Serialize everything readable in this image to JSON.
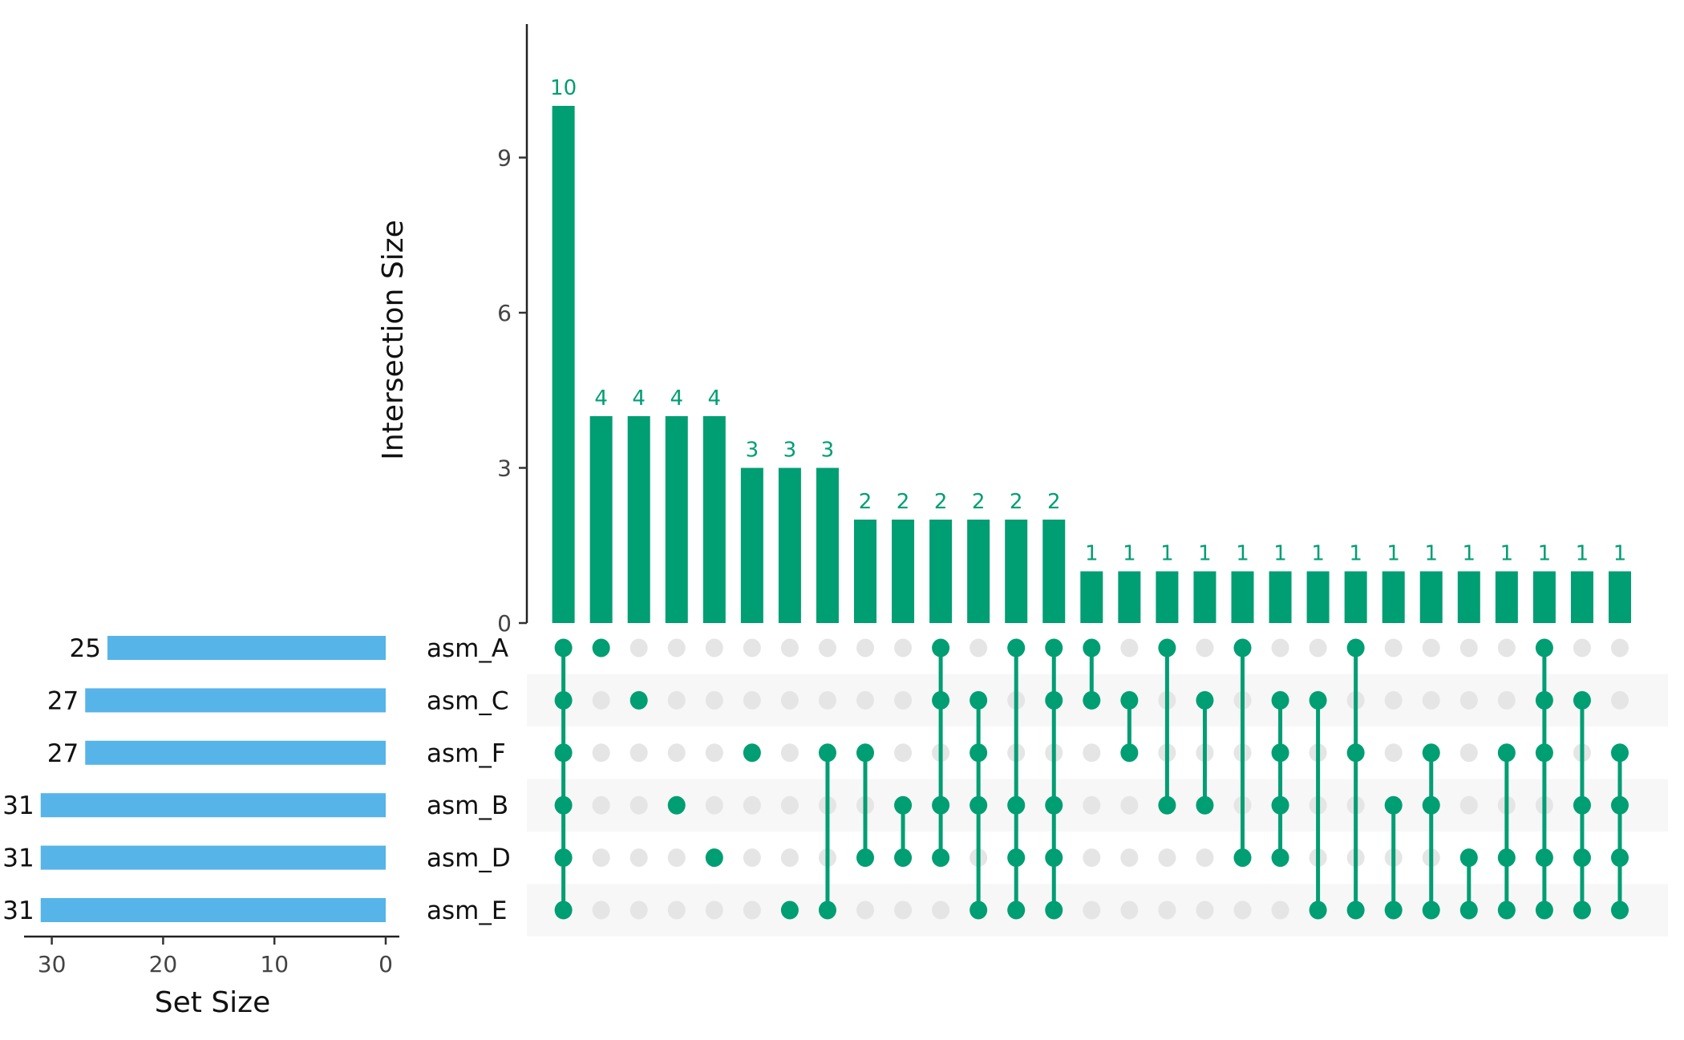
{
  "chart_data": {
    "type": "upset",
    "title": "",
    "colors": {
      "intersection": "#009E73",
      "set_size": "#56B4E9",
      "inactive_dot": "#E5E5E5",
      "band": "#F7F7F7"
    },
    "intersection_axis": {
      "ylabel": "Intersection Size",
      "ylim": [
        0,
        11.5
      ],
      "ticks": [
        0,
        3,
        6,
        9
      ]
    },
    "set_size_axis": {
      "xlabel": "Set Size",
      "xlim": [
        31.5,
        0
      ],
      "ticks": [
        30,
        20,
        10,
        0
      ]
    },
    "sets": [
      {
        "name": "asm_A",
        "size": 25,
        "size_label": "25"
      },
      {
        "name": "asm_C",
        "size": 27,
        "size_label": "27"
      },
      {
        "name": "asm_F",
        "size": 27,
        "size_label": "27"
      },
      {
        "name": "asm_B",
        "size": 31,
        "size_label": "31"
      },
      {
        "name": "asm_D",
        "size": 31,
        "size_label": "31"
      },
      {
        "name": "asm_E",
        "size": 31,
        "size_label": "31"
      }
    ],
    "intersections": [
      {
        "sets": [
          "asm_A",
          "asm_C",
          "asm_F",
          "asm_B",
          "asm_D",
          "asm_E"
        ],
        "size": 10
      },
      {
        "sets": [
          "asm_A"
        ],
        "size": 4
      },
      {
        "sets": [
          "asm_C"
        ],
        "size": 4
      },
      {
        "sets": [
          "asm_B"
        ],
        "size": 4
      },
      {
        "sets": [
          "asm_D"
        ],
        "size": 4
      },
      {
        "sets": [
          "asm_F"
        ],
        "size": 3
      },
      {
        "sets": [
          "asm_E"
        ],
        "size": 3
      },
      {
        "sets": [
          "asm_F",
          "asm_E"
        ],
        "size": 3
      },
      {
        "sets": [
          "asm_F",
          "asm_D"
        ],
        "size": 2
      },
      {
        "sets": [
          "asm_B",
          "asm_D"
        ],
        "size": 2
      },
      {
        "sets": [
          "asm_A",
          "asm_C",
          "asm_B",
          "asm_D"
        ],
        "size": 2
      },
      {
        "sets": [
          "asm_C",
          "asm_F",
          "asm_B",
          "asm_E"
        ],
        "size": 2
      },
      {
        "sets": [
          "asm_A",
          "asm_B",
          "asm_D",
          "asm_E"
        ],
        "size": 2
      },
      {
        "sets": [
          "asm_A",
          "asm_C",
          "asm_B",
          "asm_D",
          "asm_E"
        ],
        "size": 2
      },
      {
        "sets": [
          "asm_A",
          "asm_C"
        ],
        "size": 1
      },
      {
        "sets": [
          "asm_C",
          "asm_F"
        ],
        "size": 1
      },
      {
        "sets": [
          "asm_A",
          "asm_B"
        ],
        "size": 1
      },
      {
        "sets": [
          "asm_C",
          "asm_B"
        ],
        "size": 1
      },
      {
        "sets": [
          "asm_A",
          "asm_D"
        ],
        "size": 1
      },
      {
        "sets": [
          "asm_C",
          "asm_F",
          "asm_B",
          "asm_D"
        ],
        "size": 1
      },
      {
        "sets": [
          "asm_C",
          "asm_E"
        ],
        "size": 1
      },
      {
        "sets": [
          "asm_A",
          "asm_F",
          "asm_E"
        ],
        "size": 1
      },
      {
        "sets": [
          "asm_B",
          "asm_E"
        ],
        "size": 1
      },
      {
        "sets": [
          "asm_F",
          "asm_B",
          "asm_E"
        ],
        "size": 1
      },
      {
        "sets": [
          "asm_D",
          "asm_E"
        ],
        "size": 1
      },
      {
        "sets": [
          "asm_F",
          "asm_D",
          "asm_E"
        ],
        "size": 1
      },
      {
        "sets": [
          "asm_A",
          "asm_C",
          "asm_F",
          "asm_D",
          "asm_E"
        ],
        "size": 1
      },
      {
        "sets": [
          "asm_C",
          "asm_B",
          "asm_D",
          "asm_E"
        ],
        "size": 1
      },
      {
        "sets": [
          "asm_F",
          "asm_B",
          "asm_D",
          "asm_E"
        ],
        "size": 1
      }
    ]
  }
}
